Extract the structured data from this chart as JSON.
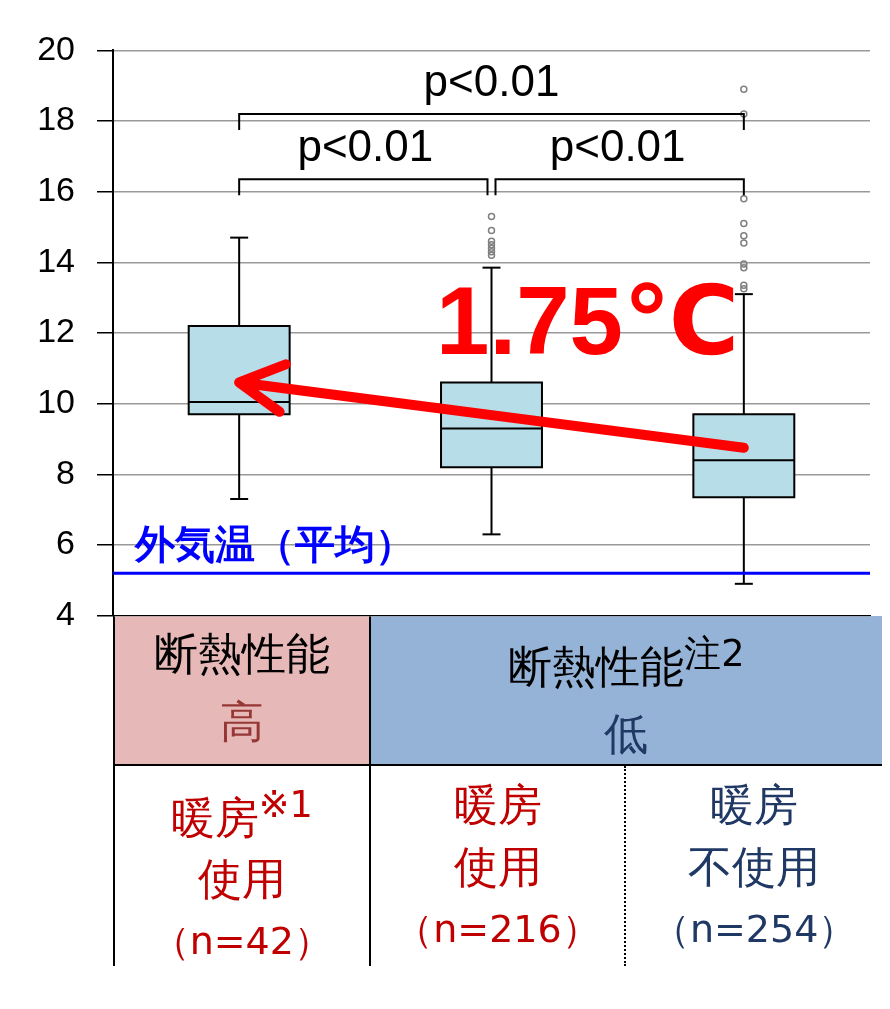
{
  "chart_data": {
    "type": "box",
    "categories": [
      "暖房$^{※1}$使用（n=42）",
      "暖房使用（n=216）",
      "暖房不使用（n=254）"
    ],
    "color": "#b7dde8",
    "boxes": [
      {
        "low": 7.3,
        "q1": 9.7,
        "median": 10.05,
        "q3": 12.2,
        "high": 14.7,
        "mean": 10.6
      },
      {
        "low": 6.3,
        "q1": 8.2,
        "median": 9.3,
        "q3": 10.6,
        "high": 13.85,
        "mean": 9.6,
        "outliers": [
          15.3,
          14.9,
          14.6,
          14.5,
          14.4,
          14.3,
          14.2
        ]
      },
      {
        "low": 4.9,
        "q1": 7.35,
        "median": 8.4,
        "q3": 9.7,
        "high": 13.1,
        "mean": 8.75,
        "outliers": [
          18.9,
          18.2,
          15.8,
          15.1,
          14.75,
          14.55,
          13.95,
          13.85,
          13.35,
          13.25
        ]
      }
    ],
    "ylim": [
      4,
      20
    ],
    "yticks": [
      4,
      6,
      8,
      10,
      12,
      14,
      16,
      18,
      20
    ],
    "grid": "y",
    "ref_lines": [
      {
        "axis": "y",
        "value": 5.2,
        "label": "外気温（平均）",
        "color": "#0000ff"
      }
    ],
    "annotations": [
      "p<0.01",
      "p<0.01",
      "p<0.01",
      "1.75℃",
      "断熱性能高",
      "断熱性能$^{注2}$低"
    ]
  }
}
